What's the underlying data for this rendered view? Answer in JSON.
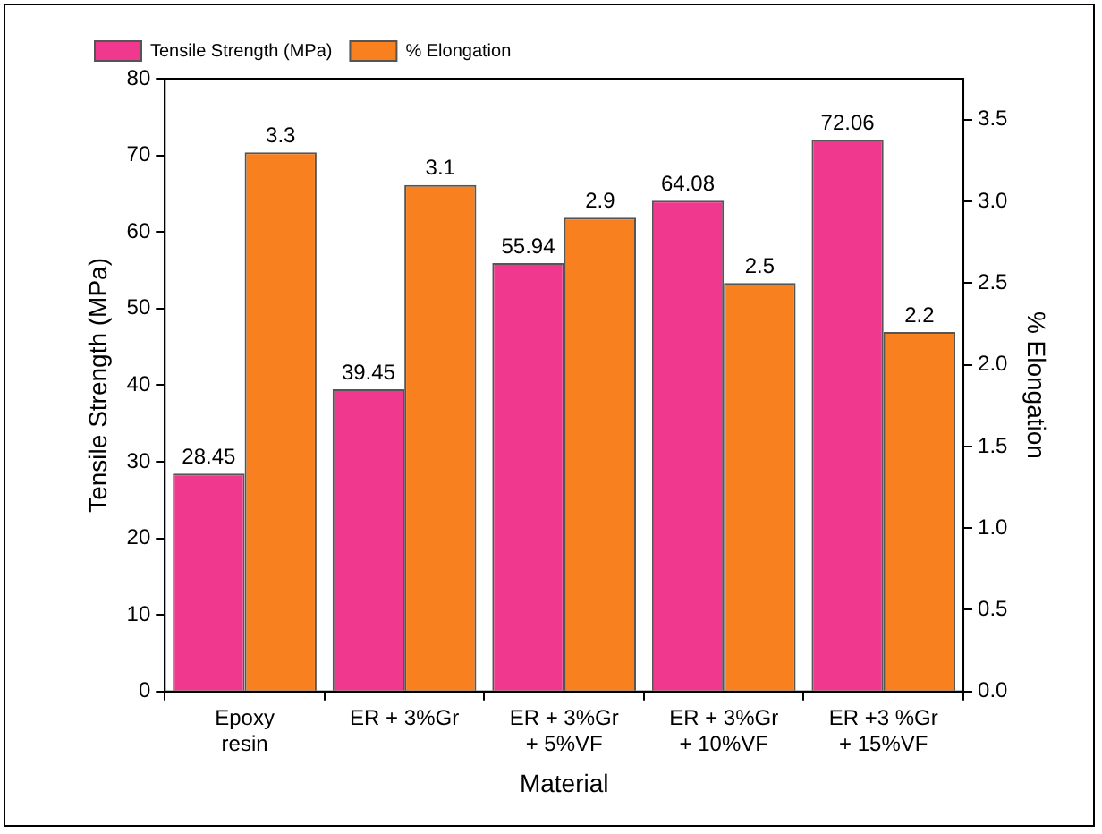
{
  "chart_data": {
    "type": "bar",
    "xlabel": "Material",
    "ylabel": "Tensile Strength (MPa)",
    "y2label": "% Elongation",
    "categories": [
      "Epoxy resin",
      "ER + 3%Gr",
      "ER + 3%Gr + 5%VF",
      "ER + 3%Gr + 10%VF",
      "ER +3 %Gr + 15%VF"
    ],
    "series": [
      {
        "name": "Tensile Strength (MPa)",
        "color": "#f0388e",
        "values": [
          28.45,
          39.45,
          55.94,
          64.08,
          72.06
        ]
      },
      {
        "name": "% Elongation",
        "color": "#f8801e",
        "axis": "y2",
        "values": [
          3.3,
          3.1,
          2.9,
          2.5,
          2.2
        ]
      }
    ],
    "ylim": [
      0,
      80
    ],
    "yticks": [
      0,
      10,
      20,
      30,
      40,
      50,
      60,
      70,
      80
    ],
    "y2lim": [
      0,
      3.75
    ],
    "y2ticks": [
      {
        "value": 0,
        "label": "0.0"
      },
      0.5,
      {
        "value": 1,
        "label": "1.0"
      },
      1.5,
      {
        "value": 2,
        "label": "2.0"
      },
      2.5,
      {
        "value": 3,
        "label": "3.0"
      },
      3.5
    ],
    "data_labels": true,
    "grid": false,
    "legend": "top left"
  }
}
